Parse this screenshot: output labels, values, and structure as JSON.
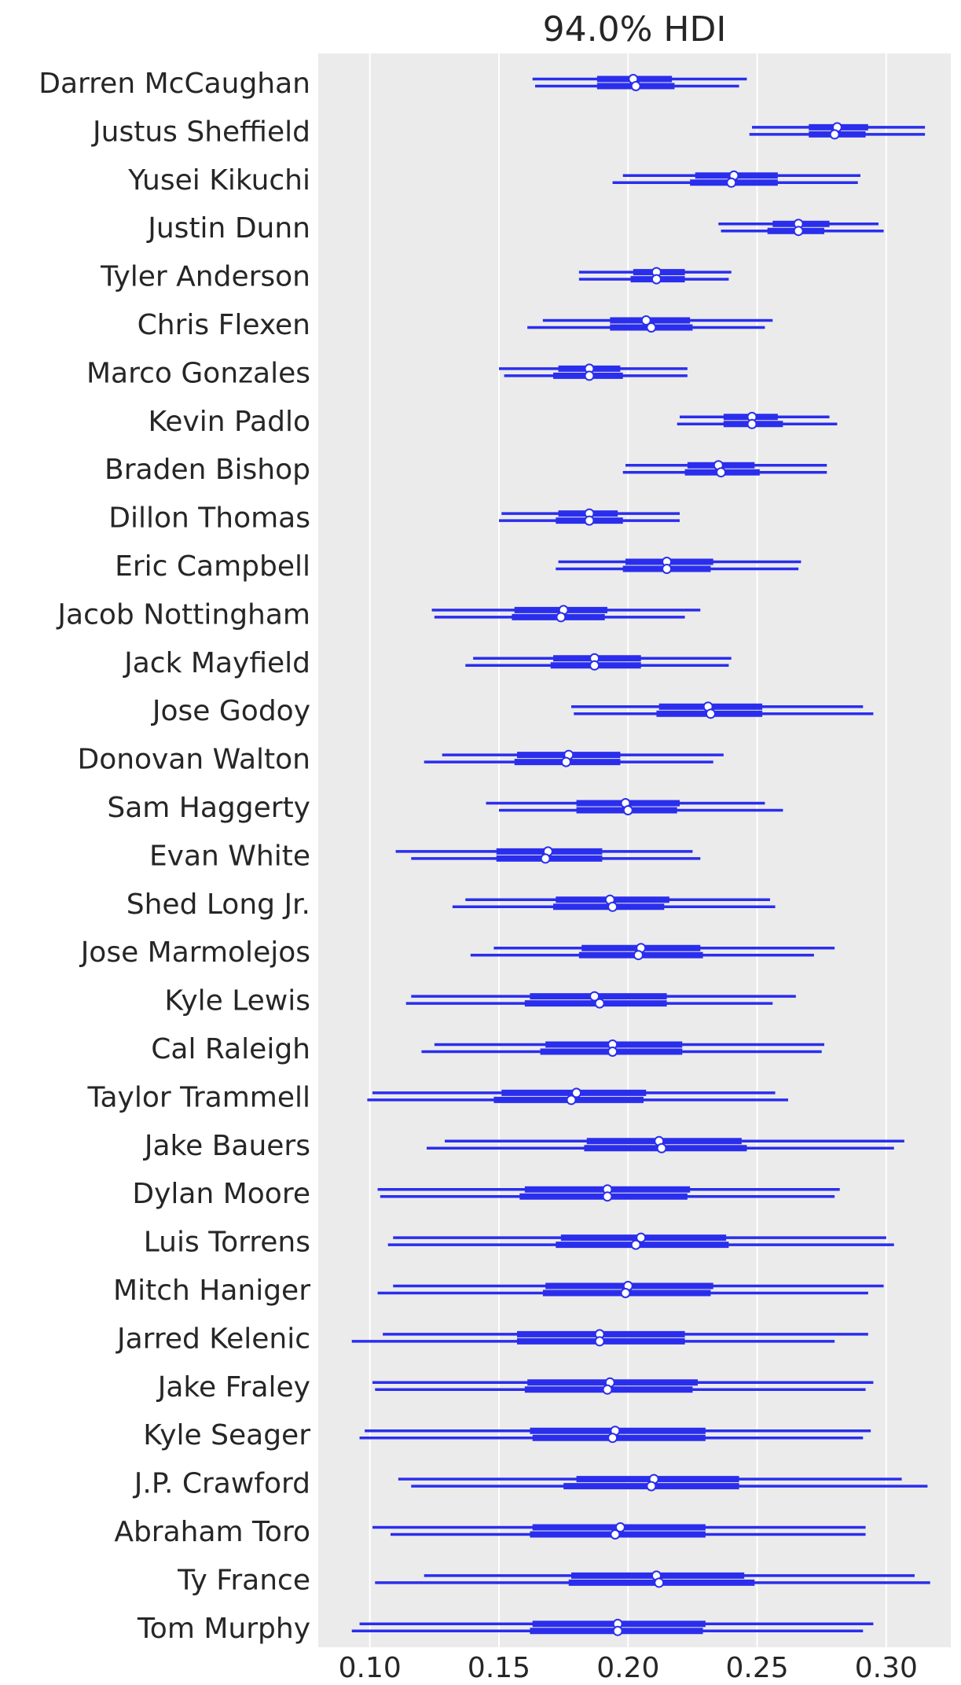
{
  "chart_data": {
    "type": "forest",
    "title": "94.0% HDI",
    "xlim": [
      0.08,
      0.325
    ],
    "xticks": [
      0.1,
      0.15,
      0.2,
      0.25,
      0.3
    ],
    "xtick_labels": [
      "0.10",
      "0.15",
      "0.20",
      "0.25",
      "0.30"
    ],
    "grid": true,
    "colors": {
      "background": "#EBEBEB",
      "mark": "#2A2EEC",
      "grid": "#FFFFFF",
      "text": "#262626"
    },
    "categories": [
      "Darren McCaughan",
      "Justus Sheffield",
      "Yusei Kikuchi",
      "Justin Dunn",
      "Tyler Anderson",
      "Chris Flexen",
      "Marco Gonzales",
      "Kevin Padlo",
      "Braden Bishop",
      "Dillon Thomas",
      "Eric Campbell",
      "Jacob Nottingham",
      "Jack Mayfield",
      "Jose Godoy",
      "Donovan Walton",
      "Sam Haggerty",
      "Evan White",
      "Shed Long Jr.",
      "Jose Marmolejos",
      "Kyle Lewis",
      "Cal Raleigh",
      "Taylor Trammell",
      "Jake Bauers",
      "Dylan Moore",
      "Luis Torrens",
      "Mitch Haniger",
      "Jarred Kelenic",
      "Jake Fraley",
      "Kyle Seager",
      "J.P. Crawford",
      "Abraham Toro",
      "Ty France",
      "Tom Murphy"
    ],
    "series": [
      {
        "hdi94": [
          [
            0.163,
            0.246
          ],
          [
            0.248,
            0.315
          ],
          [
            0.198,
            0.29
          ],
          [
            0.235,
            0.297
          ],
          [
            0.181,
            0.24
          ],
          [
            0.167,
            0.256
          ],
          [
            0.15,
            0.223
          ],
          [
            0.22,
            0.278
          ],
          [
            0.199,
            0.277
          ],
          [
            0.151,
            0.22
          ],
          [
            0.173,
            0.267
          ],
          [
            0.124,
            0.228
          ],
          [
            0.14,
            0.24
          ],
          [
            0.178,
            0.291
          ],
          [
            0.128,
            0.237
          ],
          [
            0.145,
            0.253
          ],
          [
            0.11,
            0.225
          ],
          [
            0.137,
            0.255
          ],
          [
            0.148,
            0.28
          ],
          [
            0.116,
            0.265
          ],
          [
            0.125,
            0.276
          ],
          [
            0.101,
            0.257
          ],
          [
            0.129,
            0.307
          ],
          [
            0.103,
            0.282
          ],
          [
            0.109,
            0.3
          ],
          [
            0.109,
            0.299
          ],
          [
            0.105,
            0.293
          ],
          [
            0.101,
            0.295
          ],
          [
            0.098,
            0.294
          ],
          [
            0.111,
            0.306
          ],
          [
            0.101,
            0.292
          ],
          [
            0.121,
            0.311
          ],
          [
            0.096,
            0.295
          ]
        ],
        "iqr": [
          [
            0.188,
            0.217
          ],
          [
            0.27,
            0.293
          ],
          [
            0.226,
            0.258
          ],
          [
            0.256,
            0.278
          ],
          [
            0.202,
            0.222
          ],
          [
            0.193,
            0.224
          ],
          [
            0.173,
            0.197
          ],
          [
            0.237,
            0.258
          ],
          [
            0.223,
            0.249
          ],
          [
            0.173,
            0.196
          ],
          [
            0.199,
            0.233
          ],
          [
            0.156,
            0.192
          ],
          [
            0.171,
            0.205
          ],
          [
            0.212,
            0.252
          ],
          [
            0.157,
            0.197
          ],
          [
            0.18,
            0.22
          ],
          [
            0.149,
            0.19
          ],
          [
            0.172,
            0.216
          ],
          [
            0.182,
            0.228
          ],
          [
            0.162,
            0.215
          ],
          [
            0.168,
            0.221
          ],
          [
            0.151,
            0.207
          ],
          [
            0.184,
            0.244
          ],
          [
            0.16,
            0.224
          ],
          [
            0.174,
            0.238
          ],
          [
            0.168,
            0.233
          ],
          [
            0.157,
            0.222
          ],
          [
            0.161,
            0.227
          ],
          [
            0.162,
            0.23
          ],
          [
            0.18,
            0.243
          ],
          [
            0.163,
            0.23
          ],
          [
            0.178,
            0.245
          ],
          [
            0.163,
            0.23
          ]
        ],
        "median": [
          0.202,
          0.281,
          0.241,
          0.266,
          0.211,
          0.207,
          0.185,
          0.248,
          0.235,
          0.185,
          0.215,
          0.175,
          0.187,
          0.231,
          0.177,
          0.199,
          0.169,
          0.193,
          0.205,
          0.187,
          0.194,
          0.18,
          0.212,
          0.192,
          0.205,
          0.2,
          0.189,
          0.193,
          0.195,
          0.21,
          0.197,
          0.211,
          0.196
        ]
      },
      {
        "hdi94": [
          [
            0.164,
            0.243
          ],
          [
            0.247,
            0.315
          ],
          [
            0.194,
            0.289
          ],
          [
            0.236,
            0.299
          ],
          [
            0.181,
            0.239
          ],
          [
            0.161,
            0.253
          ],
          [
            0.152,
            0.223
          ],
          [
            0.219,
            0.281
          ],
          [
            0.198,
            0.277
          ],
          [
            0.15,
            0.22
          ],
          [
            0.172,
            0.266
          ],
          [
            0.125,
            0.222
          ],
          [
            0.137,
            0.239
          ],
          [
            0.179,
            0.295
          ],
          [
            0.121,
            0.233
          ],
          [
            0.15,
            0.26
          ],
          [
            0.116,
            0.228
          ],
          [
            0.132,
            0.257
          ],
          [
            0.139,
            0.272
          ],
          [
            0.114,
            0.256
          ],
          [
            0.12,
            0.275
          ],
          [
            0.099,
            0.262
          ],
          [
            0.122,
            0.303
          ],
          [
            0.104,
            0.28
          ],
          [
            0.107,
            0.303
          ],
          [
            0.103,
            0.293
          ],
          [
            0.093,
            0.28
          ],
          [
            0.102,
            0.292
          ],
          [
            0.096,
            0.291
          ],
          [
            0.116,
            0.316
          ],
          [
            0.108,
            0.292
          ],
          [
            0.102,
            0.317
          ],
          [
            0.093,
            0.291
          ]
        ],
        "iqr": [
          [
            0.188,
            0.218
          ],
          [
            0.27,
            0.292
          ],
          [
            0.224,
            0.258
          ],
          [
            0.254,
            0.276
          ],
          [
            0.201,
            0.222
          ],
          [
            0.193,
            0.225
          ],
          [
            0.171,
            0.198
          ],
          [
            0.237,
            0.26
          ],
          [
            0.222,
            0.251
          ],
          [
            0.172,
            0.198
          ],
          [
            0.198,
            0.232
          ],
          [
            0.155,
            0.191
          ],
          [
            0.17,
            0.205
          ],
          [
            0.211,
            0.252
          ],
          [
            0.156,
            0.197
          ],
          [
            0.18,
            0.219
          ],
          [
            0.149,
            0.19
          ],
          [
            0.171,
            0.214
          ],
          [
            0.181,
            0.229
          ],
          [
            0.16,
            0.215
          ],
          [
            0.166,
            0.221
          ],
          [
            0.148,
            0.206
          ],
          [
            0.183,
            0.246
          ],
          [
            0.158,
            0.223
          ],
          [
            0.172,
            0.239
          ],
          [
            0.167,
            0.232
          ],
          [
            0.157,
            0.222
          ],
          [
            0.16,
            0.225
          ],
          [
            0.163,
            0.23
          ],
          [
            0.175,
            0.243
          ],
          [
            0.162,
            0.23
          ],
          [
            0.177,
            0.249
          ],
          [
            0.162,
            0.229
          ]
        ],
        "median": [
          0.203,
          0.28,
          0.24,
          0.266,
          0.211,
          0.209,
          0.185,
          0.248,
          0.236,
          0.185,
          0.215,
          0.174,
          0.187,
          0.232,
          0.176,
          0.2,
          0.168,
          0.194,
          0.204,
          0.189,
          0.194,
          0.178,
          0.213,
          0.192,
          0.203,
          0.199,
          0.189,
          0.192,
          0.194,
          0.209,
          0.195,
          0.212,
          0.196
        ]
      }
    ]
  }
}
